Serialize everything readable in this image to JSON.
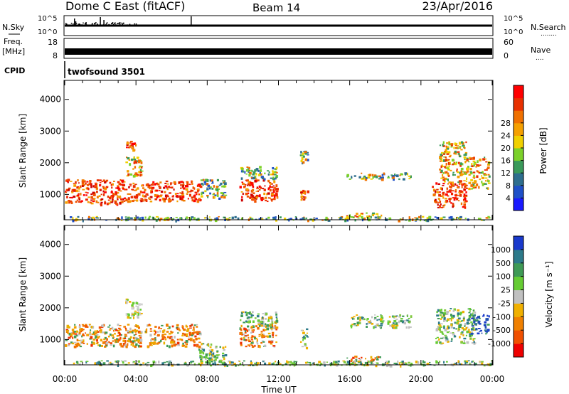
{
  "header": {
    "station": "Dome C East (fitACF)",
    "beam": "Beam 14",
    "date": "23/Apr/2016"
  },
  "sky_panel": {
    "left_label": "N.Sky",
    "right_label": "N.Search",
    "right_dots": "........",
    "y_ticks": [
      "10^5",
      "10^0"
    ],
    "right_ticks": [
      "10^5",
      "10^0"
    ]
  },
  "freq_panel": {
    "left_label_top": "Freq.",
    "left_label_bottom": "[MHz]",
    "right_label": "Nave",
    "right_dots": "....",
    "y_ticks": [
      "18",
      "8"
    ],
    "right_ticks": [
      "60",
      "0"
    ]
  },
  "cpid": {
    "label": "CPID",
    "program": "twofsound 3501"
  },
  "time_axis": {
    "ticks": [
      "00:00",
      "04:00",
      "08:00",
      "12:00",
      "16:00",
      "20:00",
      "00:00"
    ],
    "tick_hours": [
      0,
      4,
      8,
      12,
      16,
      20,
      24
    ],
    "title": "Time UT"
  },
  "power_panel": {
    "ylabel": "Slant Range [km]",
    "y_ticks": [
      "1000",
      "2000",
      "3000",
      "4000"
    ],
    "y_tick_values": [
      1000,
      2000,
      3000,
      4000
    ],
    "colorbar_label": "Power [dB]",
    "colorbar_ticks": [
      "4",
      "8",
      "12",
      "16",
      "20",
      "24",
      "28"
    ],
    "colorbar_colors": [
      "#1a1aff",
      "#1f50c8",
      "#2e6e8e",
      "#3a9a5a",
      "#7cd12a",
      "#f0d000",
      "#f5a000",
      "#f07000",
      "#e83000",
      "#ff0000"
    ]
  },
  "velocity_panel": {
    "ylabel": "Slant Range [km]",
    "y_ticks": [
      "1000",
      "2000",
      "3000",
      "4000"
    ],
    "y_tick_values": [
      1000,
      2000,
      3000,
      4000
    ],
    "colorbar_label": "Velocity [m s⁻¹]",
    "colorbar_ticks": [
      "1000",
      "500",
      "100",
      "25",
      "-25",
      "-100",
      "-500",
      "-1000"
    ],
    "colorbar_colors": [
      "#1a3acc",
      "#2d7a8a",
      "#3f9a55",
      "#66cc33",
      "#c0c0c0",
      "#f0b000",
      "#f08000",
      "#f05000",
      "#ee0000"
    ]
  },
  "chart_data": {
    "type": "heatmap",
    "x_unit": "hours UT",
    "y_unit": "km",
    "xlim": [
      0,
      24
    ],
    "ylim": [
      200,
      4600
    ],
    "power_clusters": [
      {
        "t": [
          0.0,
          3.3
        ],
        "r": [
          700,
          1500
        ],
        "level": "high"
      },
      {
        "t": [
          3.3,
          4.8
        ],
        "r": [
          800,
          1400
        ],
        "level": "high"
      },
      {
        "t": [
          4.8,
          7.6
        ],
        "r": [
          800,
          1450
        ],
        "level": "high"
      },
      {
        "t": [
          3.4,
          4.3
        ],
        "r": [
          1600,
          2200
        ],
        "level": "mid"
      },
      {
        "t": [
          3.4,
          4.0
        ],
        "r": [
          2400,
          2700
        ],
        "level": "high"
      },
      {
        "t": [
          7.6,
          9.0
        ],
        "r": [
          900,
          1500
        ],
        "level": "low"
      },
      {
        "t": [
          9.8,
          11.9
        ],
        "r": [
          800,
          1500
        ],
        "level": "high"
      },
      {
        "t": [
          9.8,
          11.9
        ],
        "r": [
          1500,
          1900
        ],
        "level": "low"
      },
      {
        "t": [
          13.2,
          13.6
        ],
        "r": [
          850,
          1150
        ],
        "level": "high"
      },
      {
        "t": [
          13.2,
          13.6
        ],
        "r": [
          2000,
          2400
        ],
        "level": "low"
      },
      {
        "t": [
          15.8,
          19.5
        ],
        "r": [
          1500,
          1700
        ],
        "level": "low"
      },
      {
        "t": [
          15.8,
          17.8
        ],
        "r": [
          250,
          450
        ],
        "level": "mid"
      },
      {
        "t": [
          20.6,
          22.5
        ],
        "r": [
          600,
          1400
        ],
        "level": "high"
      },
      {
        "t": [
          21.0,
          22.5
        ],
        "r": [
          1400,
          2700
        ],
        "level": "mid"
      },
      {
        "t": [
          22.5,
          23.8
        ],
        "r": [
          1200,
          2200
        ],
        "level": "mid"
      },
      {
        "t": [
          0.0,
          24.0
        ],
        "r": [
          200,
          320
        ],
        "level": "low"
      }
    ],
    "velocity_clusters": [
      {
        "t": [
          0.0,
          3.0
        ],
        "r": [
          800,
          1500
        ],
        "sign": "neg"
      },
      {
        "t": [
          3.0,
          5.0
        ],
        "r": [
          800,
          1500
        ],
        "sign": "neg"
      },
      {
        "t": [
          5.0,
          7.6
        ],
        "r": [
          800,
          1500
        ],
        "sign": "neg"
      },
      {
        "t": [
          3.3,
          4.3
        ],
        "r": [
          1700,
          2300
        ],
        "sign": "zero"
      },
      {
        "t": [
          7.5,
          9.0
        ],
        "r": [
          300,
          900
        ],
        "sign": "pos"
      },
      {
        "t": [
          9.8,
          11.9
        ],
        "r": [
          800,
          1500
        ],
        "sign": "neg"
      },
      {
        "t": [
          9.8,
          11.9
        ],
        "r": [
          1500,
          1900
        ],
        "sign": "pos"
      },
      {
        "t": [
          13.2,
          13.6
        ],
        "r": [
          700,
          1400
        ],
        "sign": "pos"
      },
      {
        "t": [
          15.8,
          17.8
        ],
        "r": [
          250,
          500
        ],
        "sign": "neg"
      },
      {
        "t": [
          16.0,
          19.5
        ],
        "r": [
          1400,
          1800
        ],
        "sign": "pos"
      },
      {
        "t": [
          20.8,
          23.0
        ],
        "r": [
          900,
          2000
        ],
        "sign": "pos"
      },
      {
        "t": [
          22.8,
          23.8
        ],
        "r": [
          1200,
          1800
        ],
        "sign": "posfast"
      },
      {
        "t": [
          0.0,
          24.0
        ],
        "r": [
          200,
          350
        ],
        "sign": "pos"
      }
    ]
  }
}
